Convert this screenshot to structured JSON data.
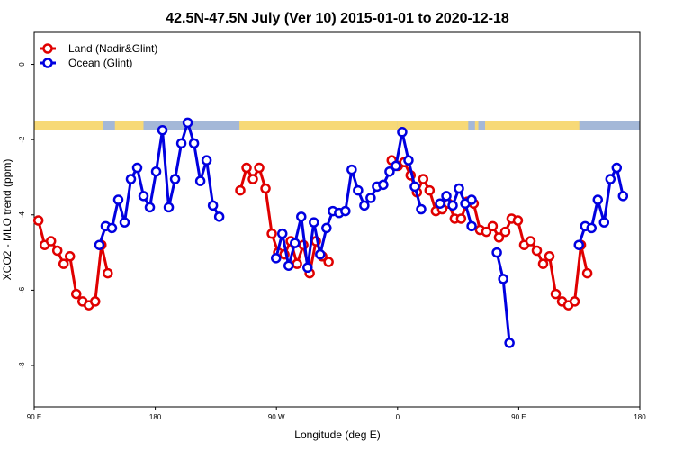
{
  "chart_data": {
    "type": "line",
    "title": "42.5N-47.5N July (Ver 10)   2015-01-01 to 2020-12-18",
    "xlabel": "Longitude (deg E)",
    "ylabel": "XCO2 - MLO trend (ppm)",
    "xlim": [
      90,
      450
    ],
    "ylim": [
      -9.1,
      0.85
    ],
    "x_ticks": [
      {
        "value": 90,
        "label": "90 E"
      },
      {
        "value": 162,
        "label": "180"
      },
      {
        "value": 234,
        "label": "90 W"
      },
      {
        "value": 306,
        "label": "0"
      },
      {
        "value": 378,
        "label": "90 E"
      },
      {
        "value": 450,
        "label": "180"
      }
    ],
    "y_ticks": [
      {
        "value": 0,
        "label": "0"
      },
      {
        "value": -2,
        "label": "-2"
      },
      {
        "value": -4,
        "label": "-4"
      },
      {
        "value": -6,
        "label": "-6"
      },
      {
        "value": -8,
        "label": "-8"
      }
    ],
    "grid": false,
    "legend_position": "top-left",
    "landmask": {
      "y_top": -1.5,
      "y_bottom": -1.75,
      "ocean_color": "#a4b8d8",
      "land_color": "#f7d977",
      "land_ranges": [
        [
          90,
          131
        ],
        [
          138,
          155
        ],
        [
          212,
          306
        ],
        [
          306,
          348
        ],
        [
          352,
          354
        ],
        [
          358,
          414
        ]
      ]
    },
    "series": [
      {
        "name": "Land (Nadir&Glint)",
        "color": "#e00000",
        "segments": [
          [
            [
              92.5,
              -4.15
            ],
            [
              96.25,
              -4.8
            ],
            [
              100,
              -4.7
            ],
            [
              103.75,
              -4.95
            ],
            [
              107.5,
              -5.3
            ],
            [
              111.25,
              -5.1
            ],
            [
              115,
              -6.1
            ],
            [
              118.75,
              -6.3
            ],
            [
              122.5,
              -6.4
            ],
            [
              126.25,
              -6.3
            ],
            [
              130,
              -4.8
            ],
            [
              133.75,
              -5.55
            ]
          ],
          [
            [
              212.5,
              -3.35
            ],
            [
              216.25,
              -2.75
            ],
            [
              220,
              -3.05
            ],
            [
              223.75,
              -2.75
            ],
            [
              227.5,
              -3.3
            ],
            [
              231.25,
              -4.5
            ],
            [
              235,
              -5
            ],
            [
              238.75,
              -5.05
            ],
            [
              242.5,
              -4.7
            ],
            [
              246.25,
              -5.3
            ],
            [
              250,
              -4.8
            ],
            [
              253.75,
              -5.55
            ],
            [
              257.5,
              -4.7
            ],
            [
              261.25,
              -5.1
            ],
            [
              265,
              -5.25
            ]
          ],
          [
            [
              302.5,
              -2.55
            ],
            [
              306.25,
              -2.7
            ],
            [
              310,
              -2.6
            ],
            [
              313.75,
              -2.95
            ],
            [
              317.5,
              -3.4
            ],
            [
              321.25,
              -3.05
            ],
            [
              325,
              -3.35
            ],
            [
              328.75,
              -3.9
            ],
            [
              332.5,
              -3.85
            ],
            [
              336.25,
              -3.7
            ],
            [
              340,
              -4.1
            ],
            [
              343.75,
              -4.1
            ],
            [
              347.5,
              -3.65
            ],
            [
              351.25,
              -3.7
            ],
            [
              355,
              -4.4
            ],
            [
              358.75,
              -4.45
            ],
            [
              362.5,
              -4.3
            ],
            [
              366.25,
              -4.6
            ],
            [
              370,
              -4.45
            ],
            [
              373.75,
              -4.1
            ],
            [
              377.5,
              -4.15
            ],
            [
              381.25,
              -4.8
            ],
            [
              385,
              -4.7
            ],
            [
              388.75,
              -4.95
            ],
            [
              392.5,
              -5.3
            ],
            [
              396.25,
              -5.1
            ],
            [
              400,
              -6.1
            ],
            [
              403.75,
              -6.3
            ],
            [
              407.5,
              -6.4
            ],
            [
              411.25,
              -6.3
            ],
            [
              415,
              -4.8
            ],
            [
              418.75,
              -5.55
            ]
          ]
        ]
      },
      {
        "name": "Ocean (Glint)",
        "color": "#0000e0",
        "segments": [
          [
            [
              128.75,
              -4.8
            ],
            [
              132.5,
              -4.3
            ],
            [
              136.25,
              -4.35
            ],
            [
              140,
              -3.6
            ],
            [
              143.75,
              -4.2
            ],
            [
              147.5,
              -3.05
            ],
            [
              151.25,
              -2.75
            ],
            [
              155,
              -3.5
            ],
            [
              158.75,
              -3.8
            ],
            [
              162.5,
              -2.85
            ],
            [
              166.25,
              -1.75
            ],
            [
              170,
              -3.8
            ],
            [
              173.75,
              -3.05
            ],
            [
              177.5,
              -2.1
            ],
            [
              181.25,
              -1.55
            ],
            [
              185,
              -2.1
            ],
            [
              188.75,
              -3.1
            ],
            [
              192.5,
              -2.55
            ],
            [
              196.25,
              -3.75
            ],
            [
              200,
              -4.05
            ]
          ],
          [
            [
              233.75,
              -5.15
            ],
            [
              237.5,
              -4.5
            ],
            [
              241.25,
              -5.35
            ],
            [
              245,
              -4.75
            ],
            [
              248.75,
              -4.05
            ],
            [
              252.5,
              -5.4
            ],
            [
              256.25,
              -4.2
            ],
            [
              260,
              -5.05
            ],
            [
              263.75,
              -4.35
            ],
            [
              267.5,
              -3.9
            ],
            [
              271.25,
              -3.95
            ],
            [
              275,
              -3.9
            ],
            [
              278.75,
              -2.8
            ],
            [
              282.5,
              -3.35
            ],
            [
              286.25,
              -3.75
            ],
            [
              290,
              -3.55
            ],
            [
              293.75,
              -3.25
            ],
            [
              297.5,
              -3.2
            ],
            [
              301.25,
              -2.85
            ],
            [
              305,
              -2.7
            ],
            [
              308.75,
              -1.8
            ],
            [
              312.5,
              -2.55
            ],
            [
              316.25,
              -3.25
            ],
            [
              320,
              -3.85
            ]
          ],
          [
            [
              331.25,
              -3.7
            ],
            [
              335,
              -3.5
            ],
            [
              338.75,
              -3.75
            ],
            [
              342.5,
              -3.3
            ],
            [
              346.25,
              -3.7
            ],
            [
              350,
              -4.3
            ]
          ],
          [
            [
              350,
              -3.6
            ]
          ],
          [
            [
              365,
              -5
            ],
            [
              368.75,
              -5.7
            ],
            [
              372.5,
              -7.4
            ]
          ],
          [
            [
              413.75,
              -4.8
            ],
            [
              417.5,
              -4.3
            ],
            [
              421.25,
              -4.35
            ],
            [
              425,
              -3.6
            ],
            [
              428.75,
              -4.2
            ],
            [
              432.5,
              -3.05
            ],
            [
              436.25,
              -2.75
            ],
            [
              440,
              -3.5
            ]
          ]
        ]
      }
    ]
  }
}
